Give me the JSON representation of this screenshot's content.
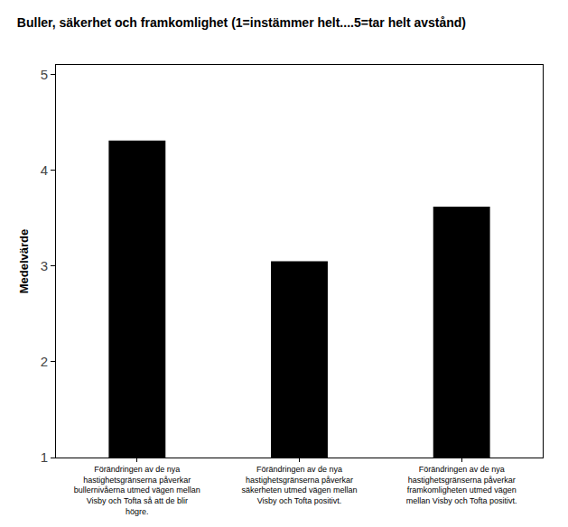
{
  "chart_data": {
    "type": "bar",
    "title": "Buller, säkerhet och framkomlighet (1=instämmer helt....5=tar helt avstånd)",
    "y_label": "Medelvärde",
    "categories": [
      "Förändringen av de nya hastighetsgränserna påverkar bullernivåerna utmed vägen mellan Visby och Tofta så att de blir högre.",
      "Förändringen av de nya hastighetsgränserna påverkar säkerheten utmed vägen mellan Visby och Tofta positivt.",
      "Förändringen av de nya hastighetsgränserna påverkar framkomligheten utmed vägen mellan Visby och Tofta positivt."
    ],
    "values": [
      4.31,
      3.05,
      3.62
    ],
    "color": "#000000",
    "ylim": [
      1,
      5.1
    ],
    "yticks": [
      1,
      2,
      3,
      4,
      5
    ],
    "grid": false
  }
}
